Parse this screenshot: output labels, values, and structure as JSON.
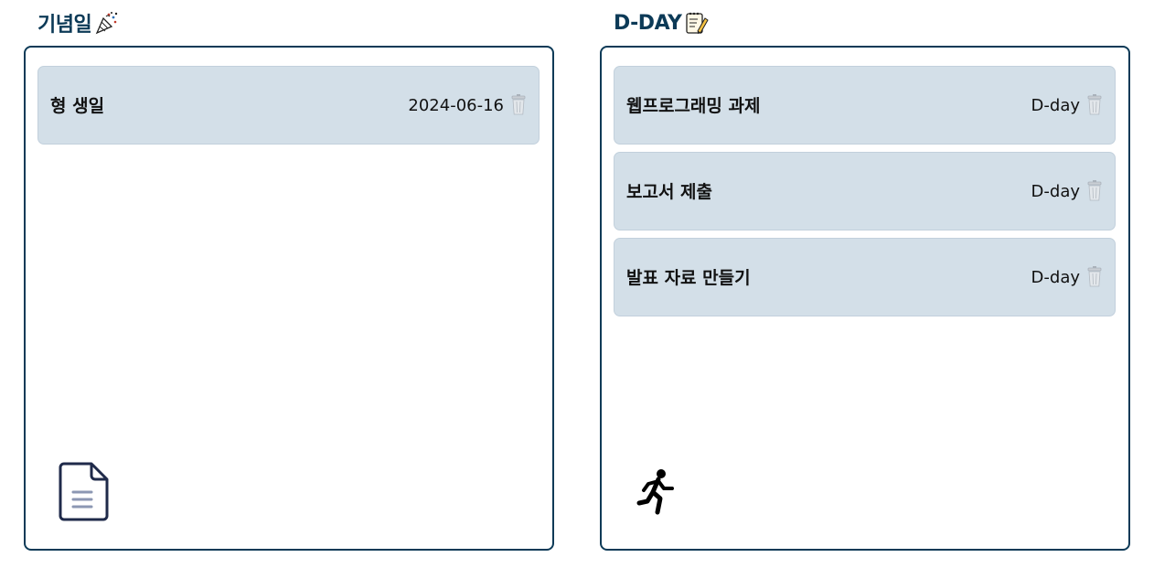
{
  "anniversary": {
    "title": "기념일",
    "title_icon": "party-popper-icon",
    "items": [
      {
        "name": "형 생일",
        "value": "2024-06-16",
        "action_icon": "trash-icon"
      }
    ],
    "footer_icon": "document-icon"
  },
  "dday": {
    "title": "D-DAY",
    "title_icon": "memo-pencil-icon",
    "items": [
      {
        "name": "웹프로그래밍 과제",
        "value": "D-day",
        "action_icon": "trash-icon"
      },
      {
        "name": "보고서 제출",
        "value": "D-day",
        "action_icon": "trash-icon"
      },
      {
        "name": "발표 자료 만들기",
        "value": "D-day",
        "action_icon": "trash-icon"
      }
    ],
    "footer_icon": "running-person-icon"
  },
  "colors": {
    "accent": "#0c3a57",
    "item_background": "#d3dfe8"
  }
}
